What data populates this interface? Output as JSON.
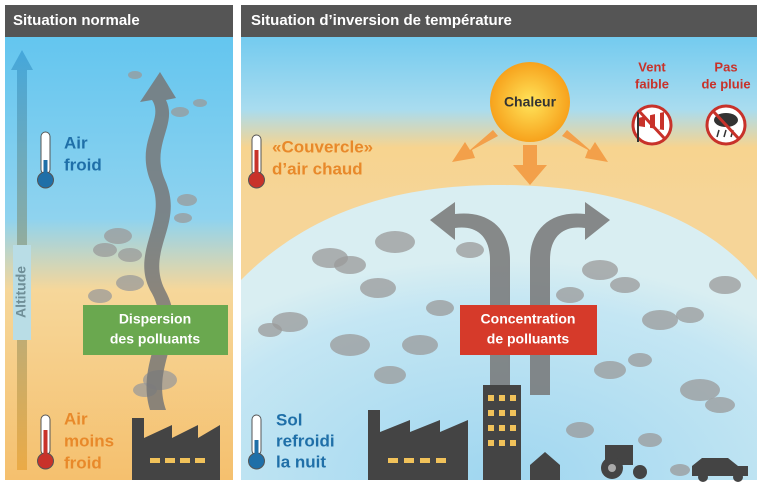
{
  "left": {
    "title": "Situation normale",
    "axis": "Altitude",
    "top_label": [
      "Air",
      "froid"
    ],
    "box": [
      "Dispersion",
      "des polluants"
    ],
    "bottom_label": [
      "Air",
      "moins",
      "froid"
    ]
  },
  "right": {
    "title": "Situation d’inversion de température",
    "sun": "Chaleur",
    "wind": [
      "Vent",
      "faible"
    ],
    "rain": [
      "Pas",
      "de pluie"
    ],
    "lid": [
      "«Couvercle»",
      "d’air chaud"
    ],
    "box": [
      "Concentration",
      "de polluants"
    ],
    "ground": [
      "Sol",
      "refroidi",
      "la nuit"
    ]
  }
}
